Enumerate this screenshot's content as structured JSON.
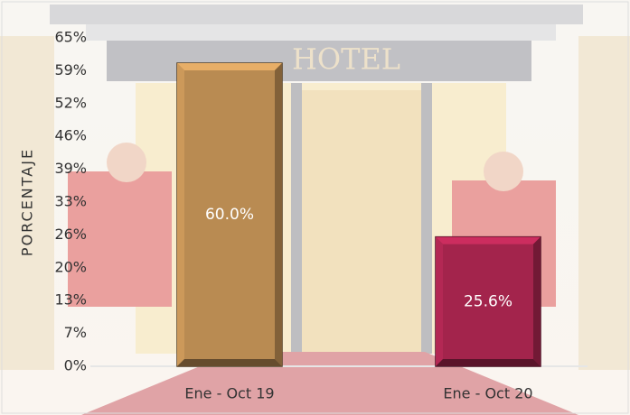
{
  "background_text": "HOTEL",
  "chart_data": {
    "type": "bar",
    "y_label": "PORCENTAJE",
    "categories": [
      "Ene - Oct 19",
      "Ene - Oct 20"
    ],
    "values": [
      60.0,
      25.6
    ],
    "value_labels": [
      "60.0%",
      "25.6%"
    ],
    "colors": [
      "#b98b52",
      "#a3244c"
    ],
    "ylim": [
      0,
      65
    ],
    "yticks": [
      {
        "value": 0,
        "label": "0%"
      },
      {
        "value": 6.5,
        "label": "7%"
      },
      {
        "value": 13,
        "label": "13%"
      },
      {
        "value": 19.5,
        "label": "20%"
      },
      {
        "value": 26,
        "label": "26%"
      },
      {
        "value": 32.5,
        "label": "33%"
      },
      {
        "value": 39,
        "label": "39%"
      },
      {
        "value": 45.5,
        "label": "46%"
      },
      {
        "value": 52,
        "label": "52%"
      },
      {
        "value": 58.5,
        "label": "59%"
      },
      {
        "value": 65,
        "label": "65%"
      }
    ],
    "grid": false
  }
}
